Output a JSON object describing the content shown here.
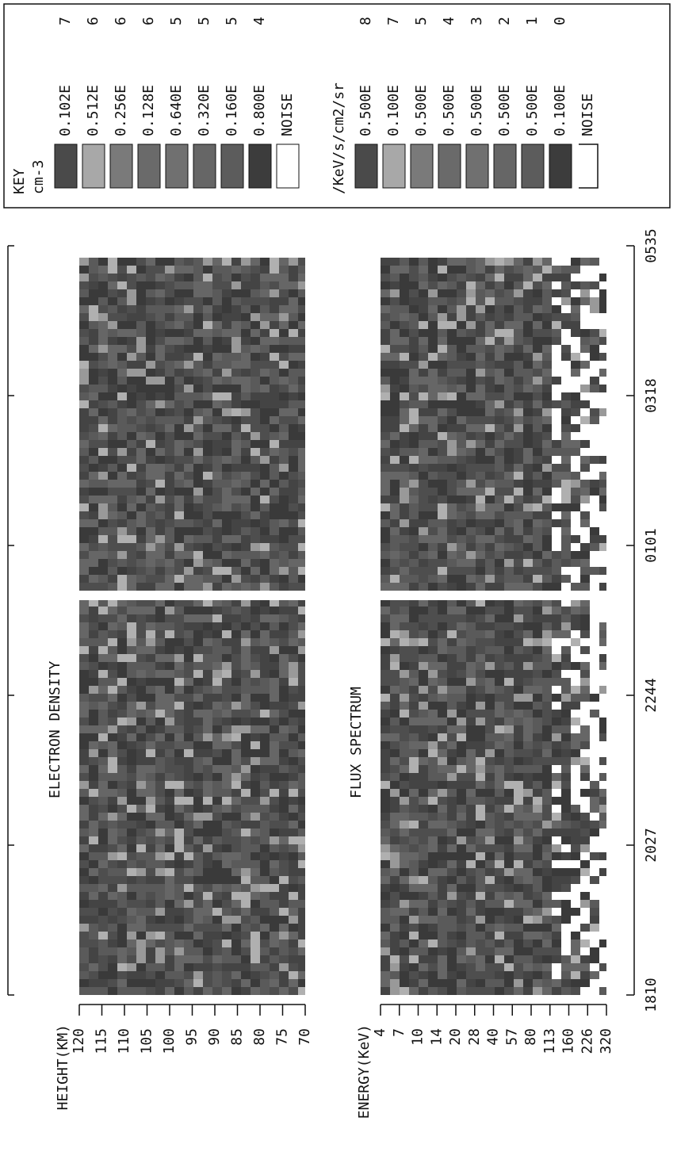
{
  "panels": [
    {
      "title": "ELECTRON DENSITY",
      "axis_label": "HEIGHT(KM)",
      "ticks": [
        "120",
        "115",
        "110",
        "105",
        "100",
        "95",
        "90",
        "85",
        "80",
        "75",
        "70"
      ]
    },
    {
      "title": "FLUX SPECTRUM",
      "axis_label": "ENERGY(KeV)",
      "ticks": [
        "4",
        "7",
        "10",
        "14",
        "20",
        "28",
        "40",
        "57",
        "80",
        "113",
        "160",
        "226",
        "320"
      ]
    }
  ],
  "time_axis": {
    "ticks": [
      "1810",
      "2027",
      "2244",
      "0101",
      "0318",
      "0535"
    ]
  },
  "key": {
    "title": "KEY",
    "sections": [
      {
        "unit": "cm-3",
        "entries": [
          {
            "value": "0.102E",
            "exponent": "7",
            "color": "#4a4a4a"
          },
          {
            "value": "0.512E",
            "exponent": "6",
            "color": "#a8a8a8"
          },
          {
            "value": "0.256E",
            "exponent": "6",
            "color": "#7a7a7a"
          },
          {
            "value": "0.128E",
            "exponent": "6",
            "color": "#6a6a6a"
          },
          {
            "value": "0.640E",
            "exponent": "5",
            "color": "#707070"
          },
          {
            "value": "0.320E",
            "exponent": "5",
            "color": "#666666"
          },
          {
            "value": "0.160E",
            "exponent": "5",
            "color": "#5c5c5c"
          },
          {
            "value": "0.800E",
            "exponent": "4",
            "color": "#3c3c3c"
          },
          {
            "value": "NOISE",
            "color": "#ffffff"
          }
        ]
      },
      {
        "unit": "/KeV/s/cm2/sr",
        "entries": [
          {
            "value": "0.500E",
            "exponent": "8",
            "color": "#4a4a4a"
          },
          {
            "value": "0.100E",
            "exponent": "7",
            "color": "#a8a8a8"
          },
          {
            "value": "0.500E",
            "exponent": "5",
            "color": "#7a7a7a"
          },
          {
            "value": "0.500E",
            "exponent": "4",
            "color": "#6a6a6a"
          },
          {
            "value": "0.500E",
            "exponent": "3",
            "color": "#707070"
          },
          {
            "value": "0.500E",
            "exponent": "2",
            "color": "#666666"
          },
          {
            "value": "0.500E",
            "exponent": "1",
            "color": "#5c5c5c"
          },
          {
            "value": "0.100E",
            "exponent": "0",
            "color": "#3c3c3c"
          },
          {
            "value": "NOISE",
            "color": "none"
          }
        ]
      }
    ]
  }
}
